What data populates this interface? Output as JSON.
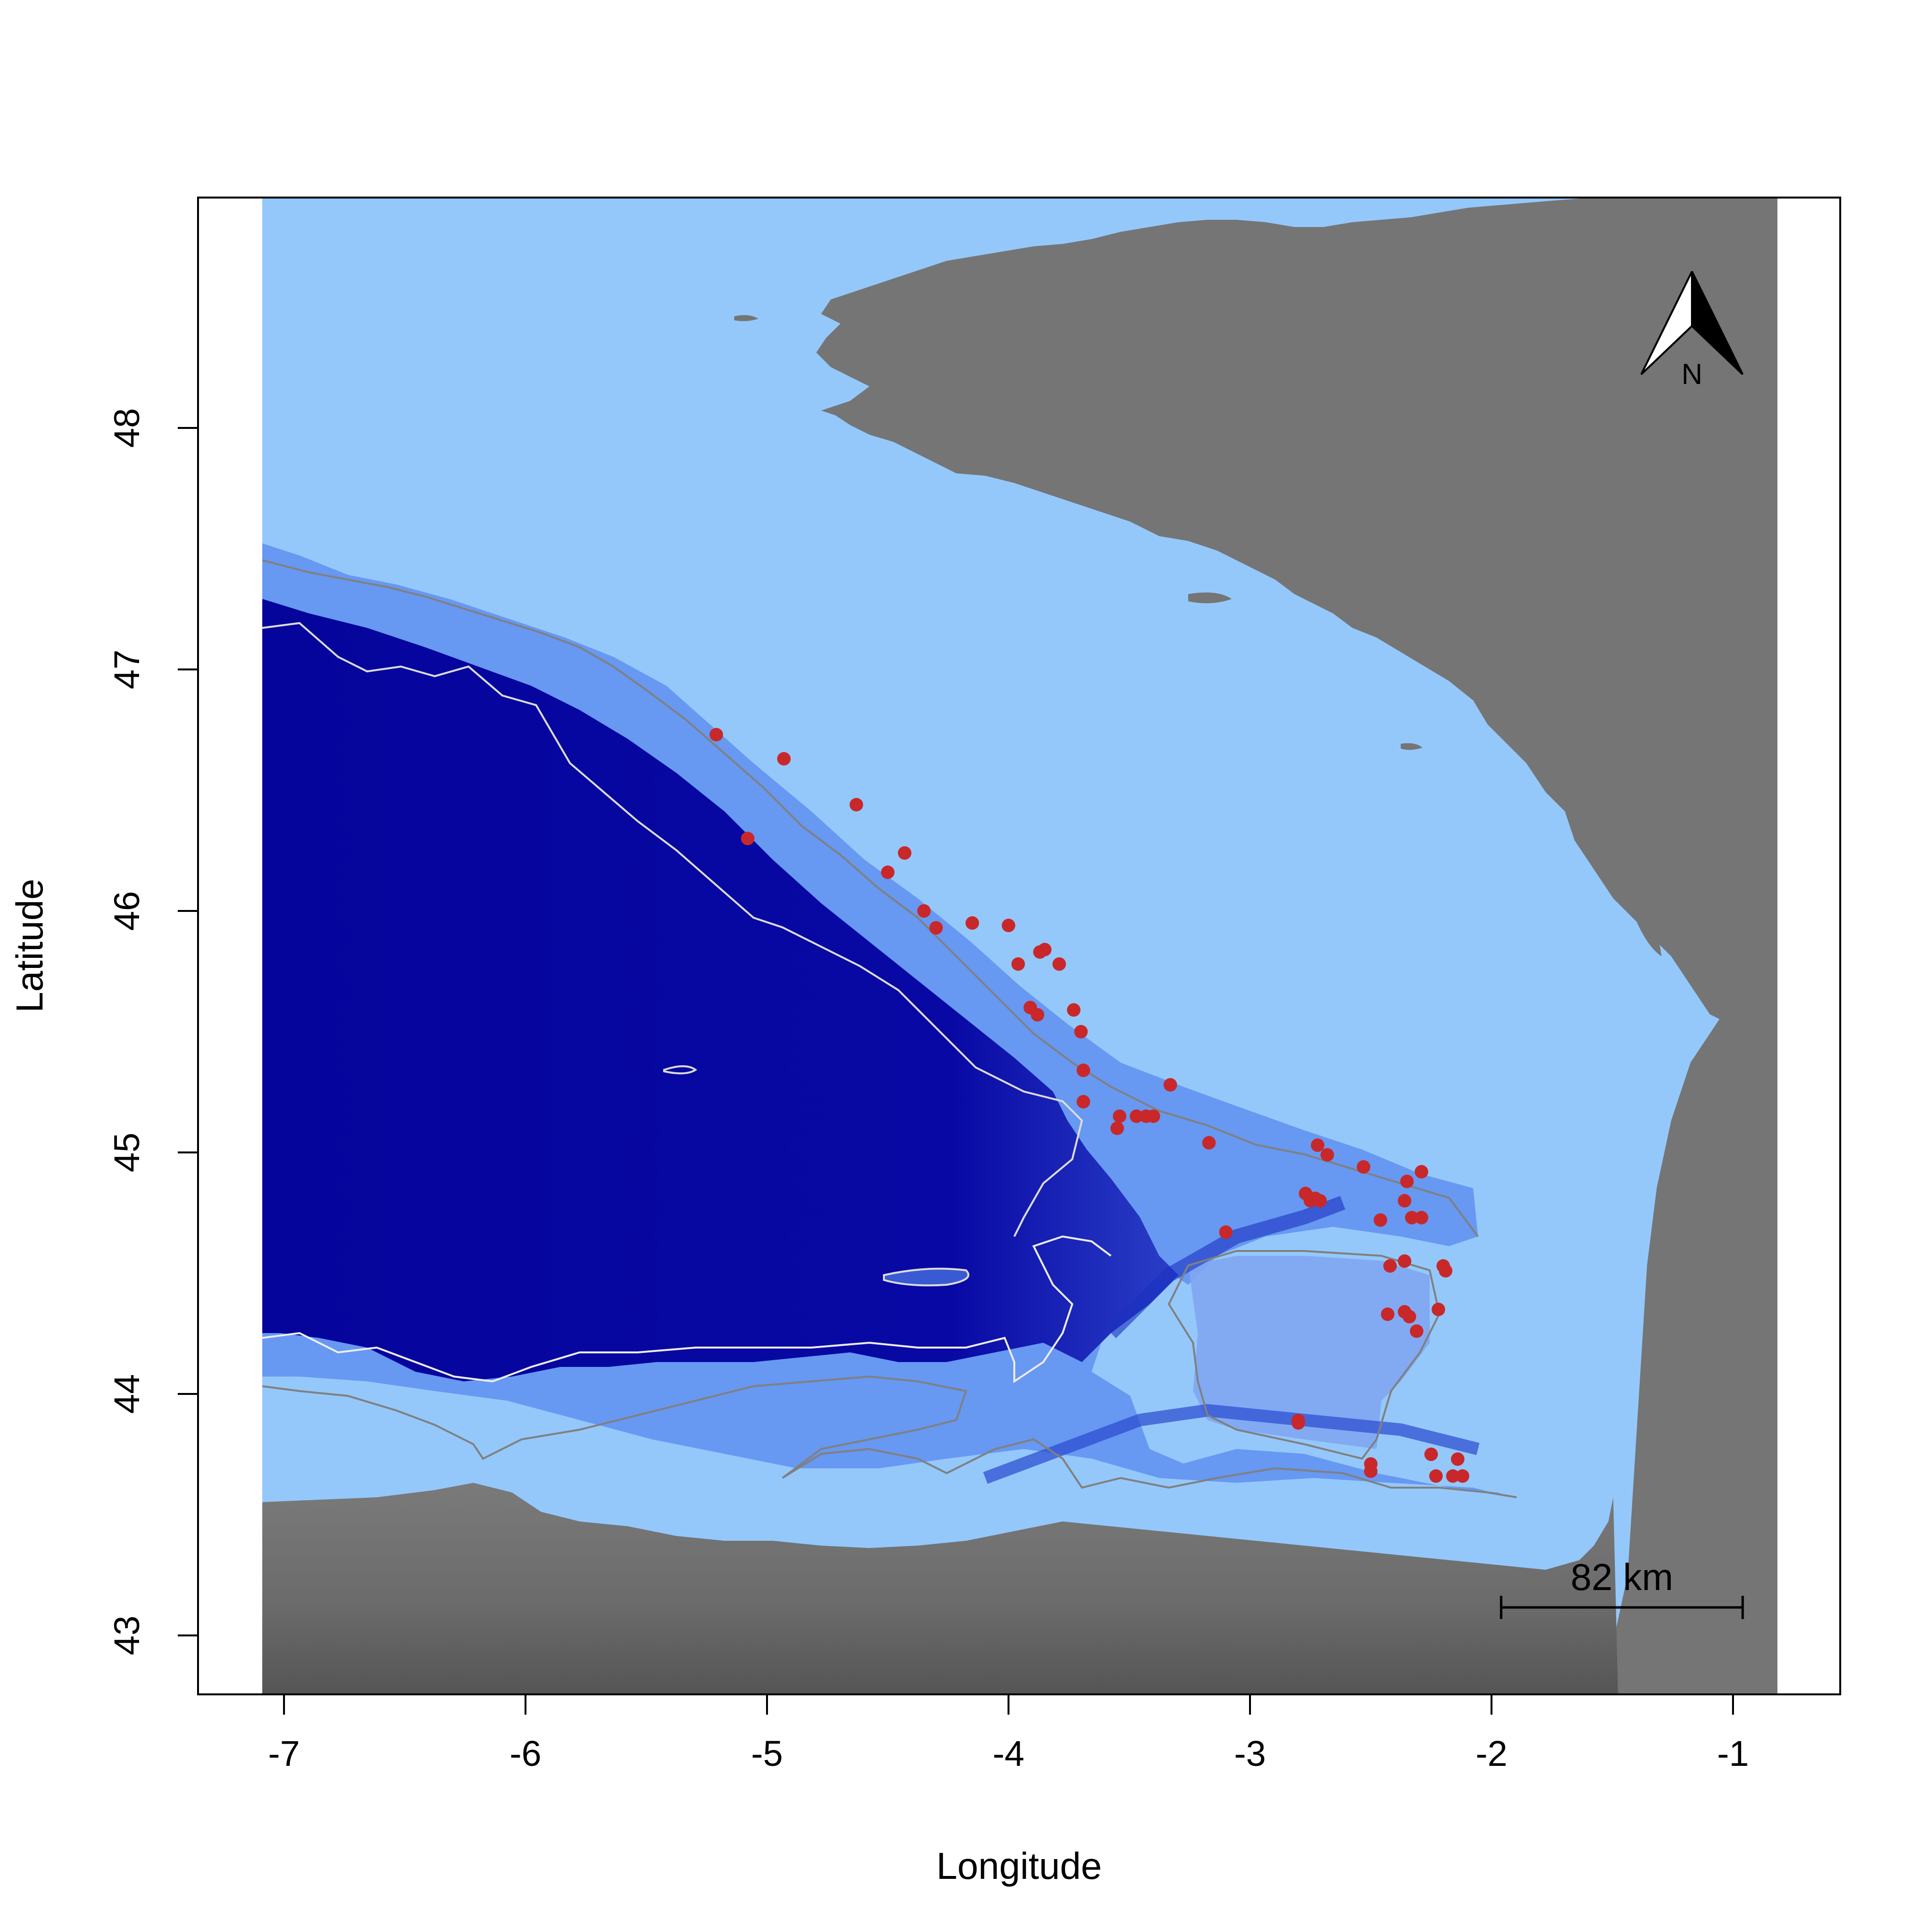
{
  "chart_data": {
    "type": "scatter",
    "title": "",
    "xlabel": "Longitude",
    "ylabel": "Latitude",
    "xlim": [
      -7.35,
      -0.55
    ],
    "ylim": [
      42.75,
      48.95
    ],
    "x_ticks": [
      -7,
      -6,
      -5,
      -4,
      -3,
      -2,
      -1
    ],
    "y_ticks": [
      43,
      44,
      45,
      46,
      47,
      48
    ],
    "x_tick_labels": [
      "-7",
      "-6",
      "-5",
      "-4",
      "-3",
      "-2",
      "-1"
    ],
    "y_tick_labels": [
      "43",
      "44",
      "45",
      "46",
      "47",
      "48"
    ],
    "grid": false,
    "legend": "none",
    "points": [
      {
        "x": -5.21,
        "y": 46.73
      },
      {
        "x": -4.93,
        "y": 46.63
      },
      {
        "x": -4.63,
        "y": 46.44
      },
      {
        "x": -5.08,
        "y": 46.3
      },
      {
        "x": -4.43,
        "y": 46.24
      },
      {
        "x": -4.5,
        "y": 46.16
      },
      {
        "x": -4.35,
        "y": 46.0
      },
      {
        "x": -4.3,
        "y": 45.93
      },
      {
        "x": -4.15,
        "y": 45.95
      },
      {
        "x": -4.0,
        "y": 45.94
      },
      {
        "x": -3.85,
        "y": 45.84
      },
      {
        "x": -3.87,
        "y": 45.83
      },
      {
        "x": -3.96,
        "y": 45.78
      },
      {
        "x": -3.79,
        "y": 45.78
      },
      {
        "x": -3.91,
        "y": 45.6
      },
      {
        "x": -3.88,
        "y": 45.57
      },
      {
        "x": -3.73,
        "y": 45.59
      },
      {
        "x": -3.7,
        "y": 45.5
      },
      {
        "x": -3.69,
        "y": 45.34
      },
      {
        "x": -3.69,
        "y": 45.21
      },
      {
        "x": -3.33,
        "y": 45.28
      },
      {
        "x": -3.54,
        "y": 45.15
      },
      {
        "x": -3.55,
        "y": 45.1
      },
      {
        "x": -3.47,
        "y": 45.15
      },
      {
        "x": -3.43,
        "y": 45.15
      },
      {
        "x": -3.4,
        "y": 45.15
      },
      {
        "x": -3.17,
        "y": 45.04
      },
      {
        "x": -2.72,
        "y": 45.03
      },
      {
        "x": -2.68,
        "y": 44.99
      },
      {
        "x": -2.53,
        "y": 44.94
      },
      {
        "x": -2.29,
        "y": 44.92
      },
      {
        "x": -2.35,
        "y": 44.88
      },
      {
        "x": -2.36,
        "y": 44.8
      },
      {
        "x": -2.77,
        "y": 44.83
      },
      {
        "x": -2.75,
        "y": 44.8
      },
      {
        "x": -2.73,
        "y": 44.81
      },
      {
        "x": -2.71,
        "y": 44.8
      },
      {
        "x": -2.33,
        "y": 44.73
      },
      {
        "x": -2.29,
        "y": 44.73
      },
      {
        "x": -2.46,
        "y": 44.72
      },
      {
        "x": -3.1,
        "y": 44.67
      },
      {
        "x": -2.36,
        "y": 44.55
      },
      {
        "x": -2.42,
        "y": 44.53
      },
      {
        "x": -2.2,
        "y": 44.53
      },
      {
        "x": -2.19,
        "y": 44.51
      },
      {
        "x": -2.36,
        "y": 44.34
      },
      {
        "x": -2.43,
        "y": 44.33
      },
      {
        "x": -2.34,
        "y": 44.32
      },
      {
        "x": -2.22,
        "y": 44.35
      },
      {
        "x": -2.31,
        "y": 44.26
      },
      {
        "x": -2.8,
        "y": 43.89
      },
      {
        "x": -2.8,
        "y": 43.88
      },
      {
        "x": -2.25,
        "y": 43.75
      },
      {
        "x": -2.14,
        "y": 43.73
      },
      {
        "x": -2.5,
        "y": 43.71
      },
      {
        "x": -2.5,
        "y": 43.68
      },
      {
        "x": -2.23,
        "y": 43.66
      },
      {
        "x": -2.16,
        "y": 43.66
      },
      {
        "x": -2.12,
        "y": 43.66
      }
    ],
    "point_color": "#c8282a",
    "sea_shallow_color": "#94c8fb",
    "sea_deep_color": "#0505a0",
    "land_color": "#757575",
    "scale_bar": {
      "label": "82 km"
    },
    "north_arrow": {
      "label": "N"
    }
  }
}
